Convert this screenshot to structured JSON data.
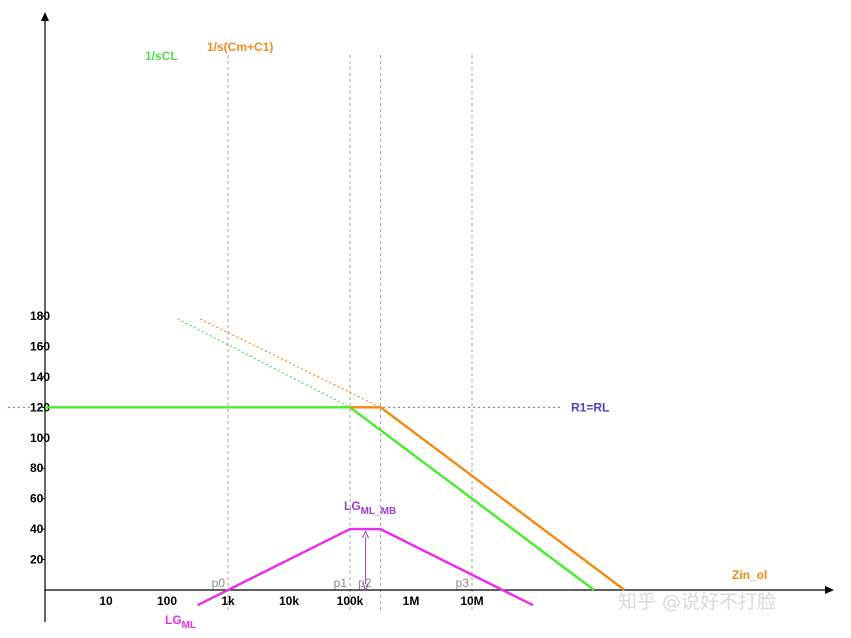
{
  "chart_data": {
    "type": "line",
    "x_scale": "log",
    "x_ticks": [
      {
        "label": "10",
        "x": 10
      },
      {
        "label": "100",
        "x": 100
      },
      {
        "label": "1k",
        "x": 1000
      },
      {
        "label": "10k",
        "x": 10000
      },
      {
        "label": "100k",
        "x": 100000
      },
      {
        "label": "1M",
        "x": 1000000
      },
      {
        "label": "10M",
        "x": 10000000
      }
    ],
    "y_ticks": [
      20,
      40,
      60,
      80,
      100,
      120,
      140,
      160,
      180
    ],
    "ylim": [
      0,
      180
    ],
    "grid": false,
    "vlines": [
      {
        "label": "p0",
        "x": 1000
      },
      {
        "label": "p1",
        "x": 100000
      },
      {
        "label": "p2",
        "x": 316000
      },
      {
        "label": "p3",
        "x": 10000000
      }
    ],
    "hline": {
      "label": "R1=RL",
      "y": 120
    },
    "series": [
      {
        "name": "1/sCL",
        "color": "#4ddc4d",
        "style": "dotted",
        "points": [
          [
            150,
            178
          ],
          [
            100000,
            120
          ]
        ]
      },
      {
        "name": "1/s(Cm+C1)",
        "color": "#f08a24",
        "style": "dotted",
        "points": [
          [
            350,
            178
          ],
          [
            316000,
            120
          ]
        ]
      },
      {
        "color": "#44ee2a",
        "style": "solid",
        "points": [
          [
            1,
            120
          ],
          [
            100000,
            120
          ],
          [
            1000000000,
            0
          ]
        ]
      },
      {
        "name": "Zin_ol",
        "color": "#f28a0f",
        "style": "solid",
        "points": [
          [
            100000,
            120
          ],
          [
            316000,
            120
          ],
          [
            3160000000,
            0
          ]
        ]
      },
      {
        "name": "LG",
        "name_sub": "ML",
        "color": "#e82ee8",
        "style": "solid",
        "points": [
          [
            316,
            -10
          ],
          [
            100000,
            40
          ],
          [
            316000,
            40
          ],
          [
            100000000,
            -10
          ]
        ]
      }
    ],
    "annotations": [
      {
        "text": "LG",
        "sub": "ML_MB",
        "x": 180000,
        "y_from": 0,
        "y_to": 40,
        "color": "#9b3fd1"
      }
    ]
  },
  "watermark": {
    "text": "知乎 @说好不打脸"
  },
  "colors": {
    "axis": "#000000",
    "guide": "#a0a0a0",
    "hline": "#6b72d6",
    "r1_label": "#3c48c8"
  }
}
